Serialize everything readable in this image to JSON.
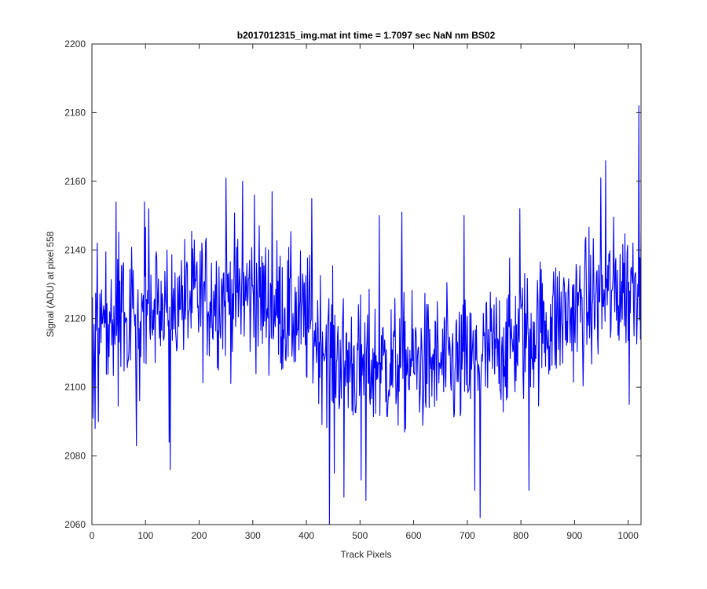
{
  "chart_data": {
    "type": "line",
    "title": "b2017012315_img.mat int time = 1.7097 sec  NaN nm BS02",
    "xlabel": "Track Pixels",
    "ylabel": "Signal (ADU) at pixel 558",
    "xlim": [
      0,
      1024
    ],
    "ylim": [
      2060,
      2200
    ],
    "xticks": [
      0,
      100,
      200,
      300,
      400,
      500,
      600,
      700,
      800,
      900,
      1000
    ],
    "yticks": [
      2060,
      2080,
      2100,
      2120,
      2140,
      2160,
      2180,
      2200
    ],
    "grid": false,
    "series_color": "#0000ff",
    "series": [
      {
        "x_start": 1,
        "x_step": 1,
        "trend": [
          [
            0,
            2118
          ],
          [
            100,
            2120
          ],
          [
            200,
            2126
          ],
          [
            300,
            2127
          ],
          [
            400,
            2119
          ],
          [
            450,
            2110
          ],
          [
            500,
            2106
          ],
          [
            600,
            2107
          ],
          [
            700,
            2106
          ],
          [
            800,
            2115
          ],
          [
            900,
            2122
          ],
          [
            1000,
            2130
          ],
          [
            1024,
            2133
          ]
        ],
        "noise_amplitude": 13,
        "count": 1024,
        "extremes": [
          [
            2,
            2091
          ],
          [
            6,
            2088
          ],
          [
            10,
            2142
          ],
          [
            12,
            2090
          ],
          [
            45,
            2154
          ],
          [
            83,
            2083
          ],
          [
            98,
            2154
          ],
          [
            106,
            2152
          ],
          [
            144,
            2084
          ],
          [
            146,
            2076
          ],
          [
            250,
            2161
          ],
          [
            281,
            2160
          ],
          [
            303,
            2156
          ],
          [
            336,
            2157
          ],
          [
            410,
            2155
          ],
          [
            443,
            2060
          ],
          [
            452,
            2075
          ],
          [
            470,
            2068
          ],
          [
            502,
            2073
          ],
          [
            511,
            2067
          ],
          [
            536,
            2150
          ],
          [
            578,
            2151
          ],
          [
            694,
            2150
          ],
          [
            714,
            2070
          ],
          [
            724,
            2062
          ],
          [
            798,
            2152
          ],
          [
            815,
            2070
          ],
          [
            949,
            2161
          ],
          [
            958,
            2166
          ],
          [
            1002,
            2095
          ],
          [
            1020,
            2182
          ],
          [
            1023,
            2114
          ]
        ]
      }
    ]
  }
}
